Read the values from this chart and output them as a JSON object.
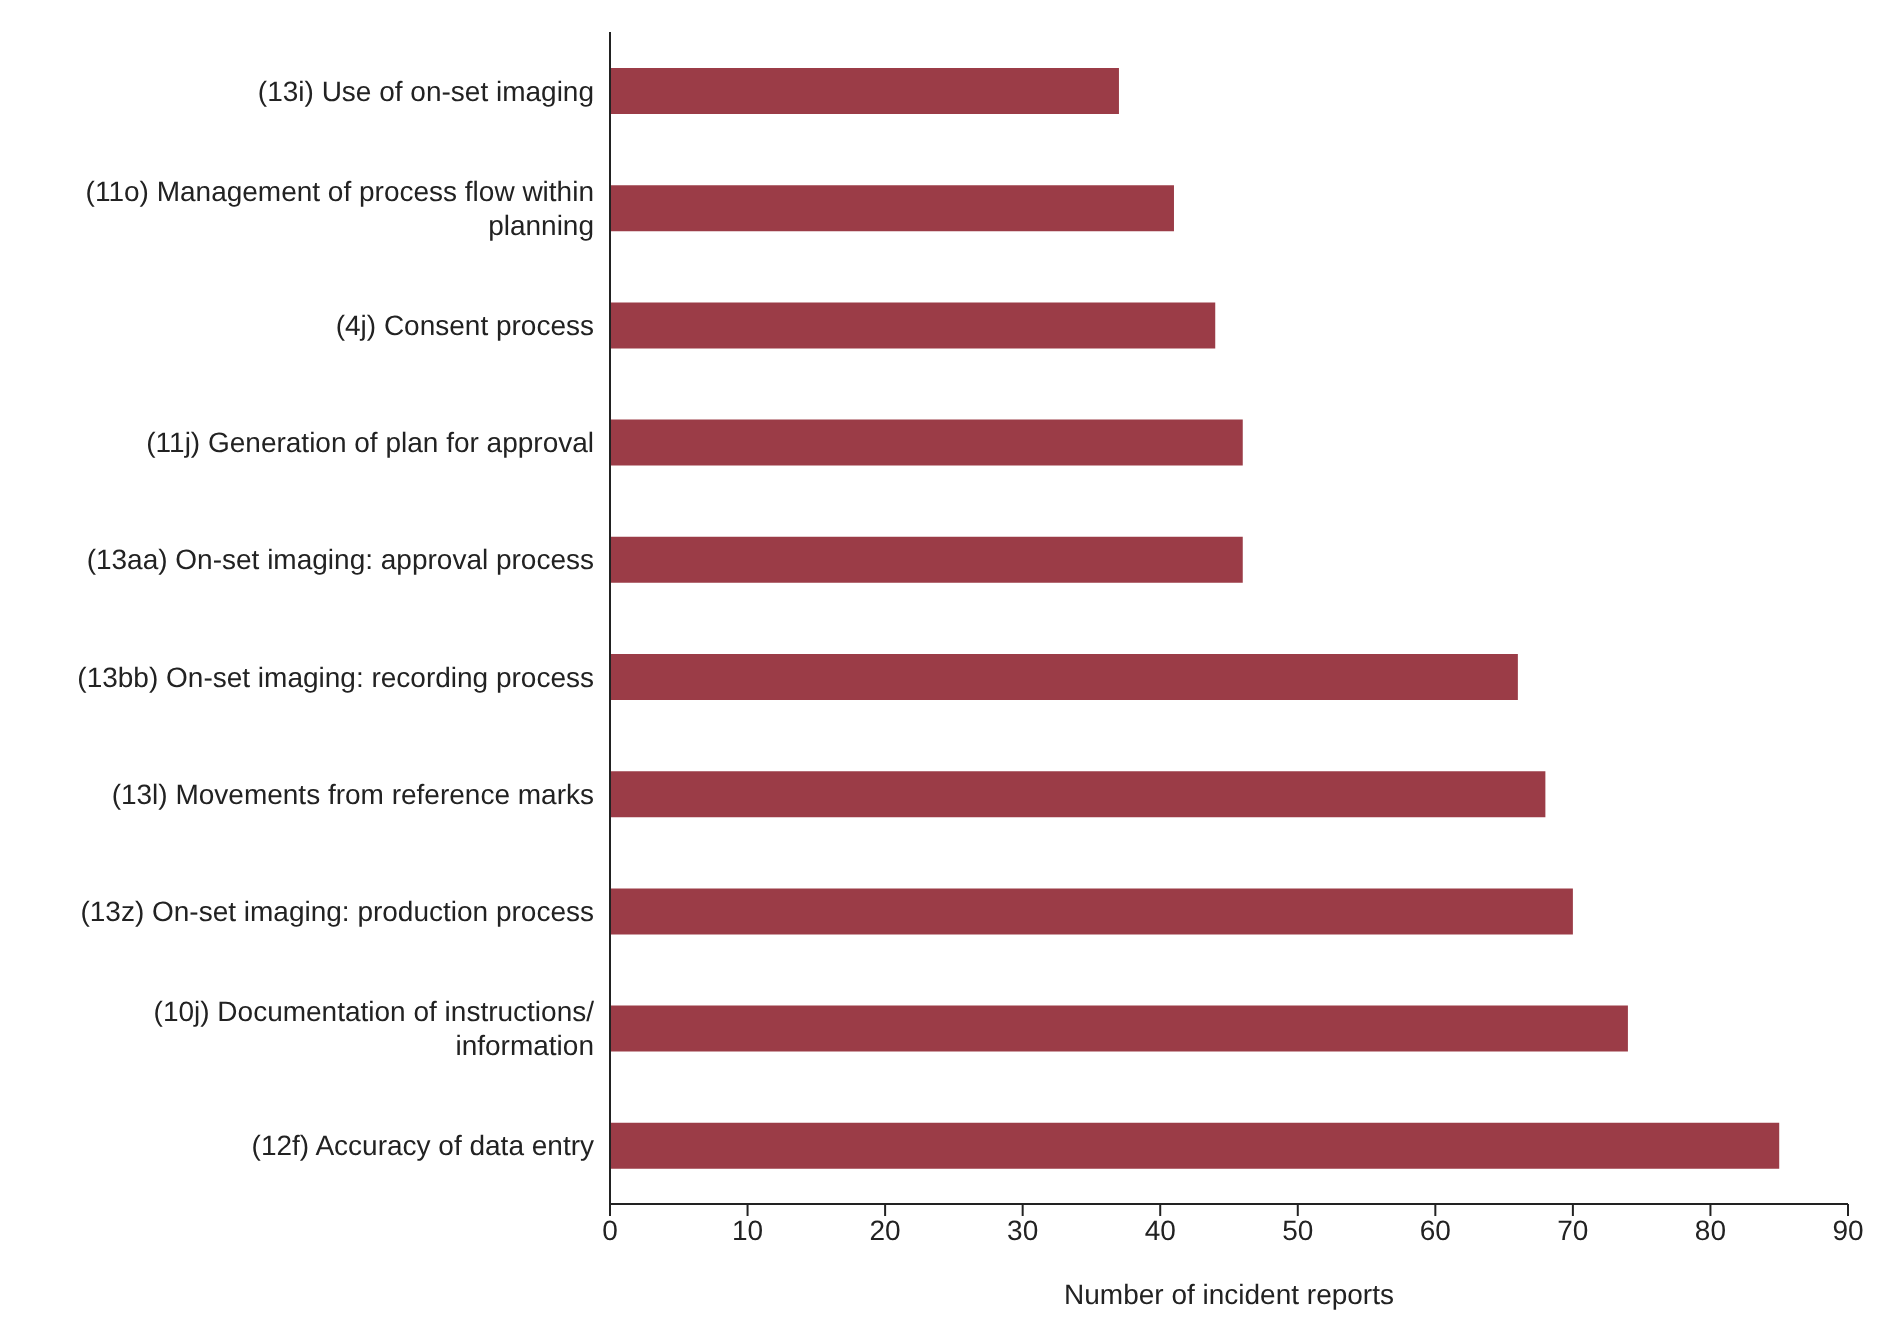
{
  "chart_data": {
    "type": "bar",
    "orientation": "horizontal",
    "xlabel": "Number of incident reports",
    "categories": [
      "(13i) Use of on-set imaging",
      "(11o) Management of process flow within planning",
      "(4j) Consent process",
      "(11j) Generation of plan for approval",
      "(13aa) On-set imaging: approval process",
      "(13bb) On-set imaging: recording process",
      "(13l) Movements from reference marks",
      "(13z) On-set imaging: production process",
      "(10j) Documentation of instructions/ information",
      "(12f) Accuracy of data entry"
    ],
    "values": [
      37,
      41,
      44,
      46,
      46,
      66,
      68,
      70,
      74,
      85
    ],
    "color": "#9b3c47",
    "xlim": [
      0,
      90
    ],
    "xticks": [
      0,
      10,
      20,
      30,
      40,
      50,
      60,
      70,
      80,
      90
    ],
    "grid": false,
    "legend": false
  }
}
